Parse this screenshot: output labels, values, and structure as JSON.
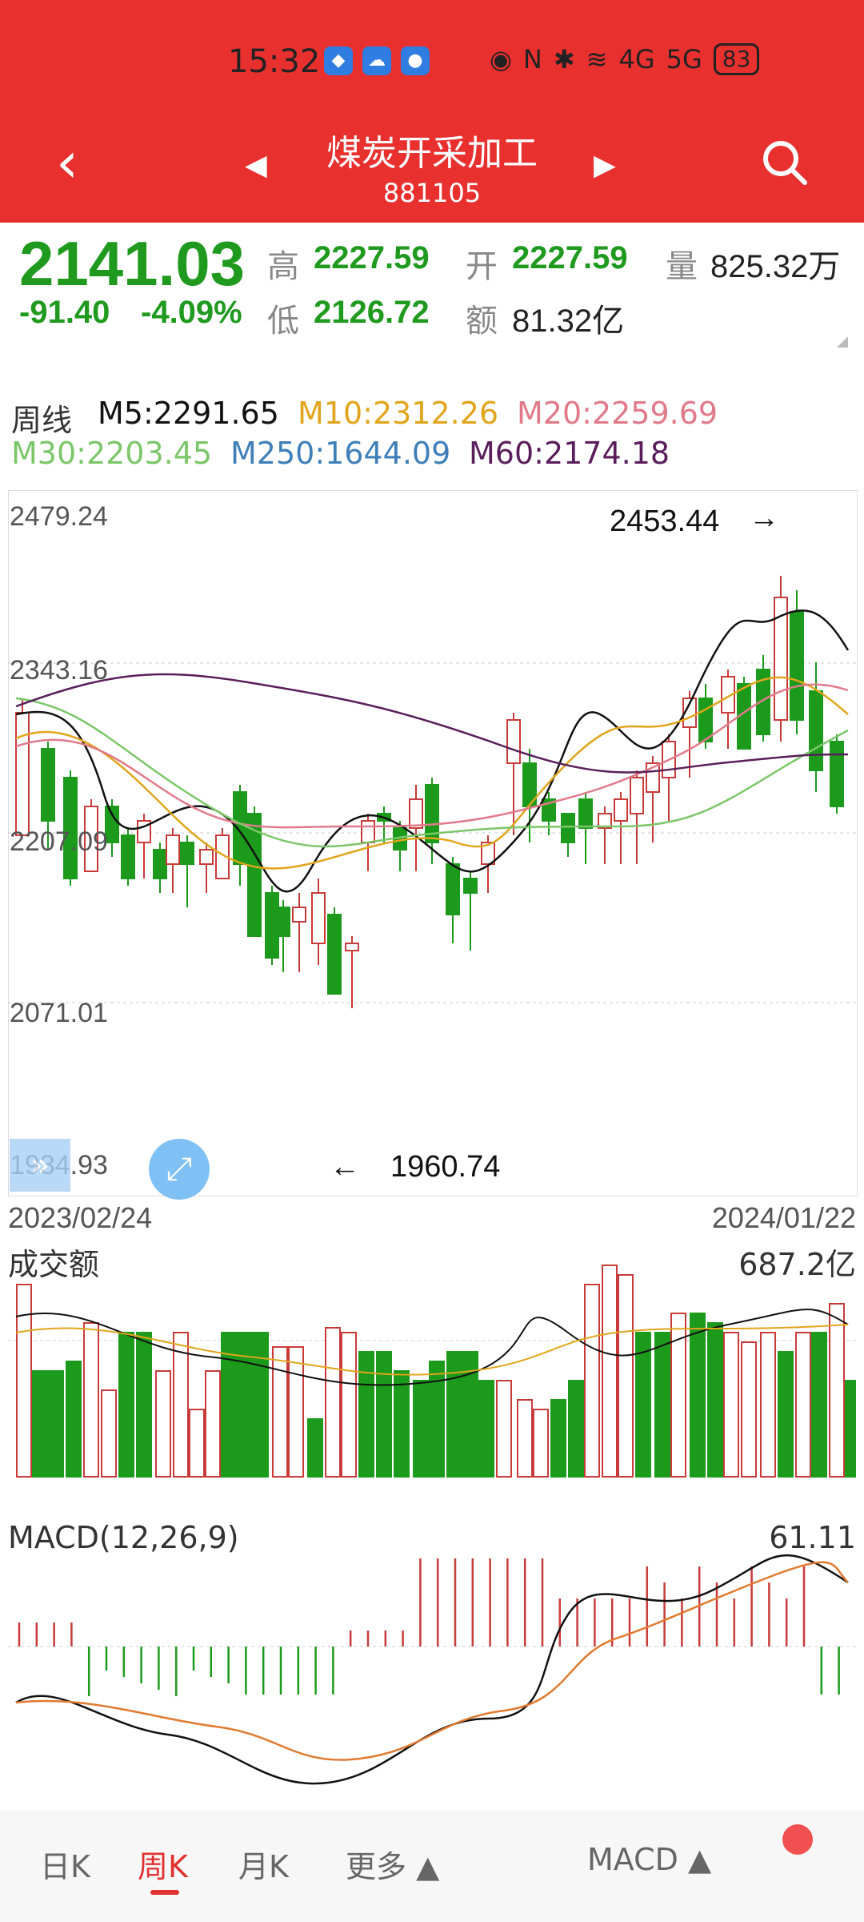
{
  "status": {
    "time": "15:32",
    "battery": "83",
    "net_4g": "4G",
    "net_5g": "5G"
  },
  "header": {
    "title": "煤炭开采加工",
    "code": "881105"
  },
  "quote": {
    "price": "2141.03",
    "change": "-91.40",
    "change_pct": "-4.09%",
    "high_label": "高",
    "high": "2227.59",
    "open_label": "开",
    "open": "2227.59",
    "vol_label": "量",
    "vol": "825.32万",
    "low_label": "低",
    "low": "2126.72",
    "amt_label": "额",
    "amt": "81.32亿"
  },
  "ma": {
    "period": "周线",
    "m5": "M5:2291.65",
    "m10": "M10:2312.26",
    "m20": "M20:2259.69",
    "m30": "M30:2203.45",
    "m250": "M250:1644.09",
    "m60": "M60:2174.18"
  },
  "colors": {
    "up": "#c83b3b",
    "down": "#1c9a1c",
    "m5": "#111111",
    "m10": "#e0a51c",
    "m20": "#e07a8a",
    "m30": "#7cc66a",
    "m250": "#3f7fb8",
    "m60": "#5a1f5a"
  },
  "kline": {
    "y_ticks": [
      "2479.24",
      "2343.16",
      "2207.09",
      "2071.01",
      "1934.93"
    ],
    "max_annot": "2453.44",
    "min_annot": "1960.74",
    "start_date": "2023/02/24",
    "end_date": "2024/01/22"
  },
  "volume": {
    "title": "成交额",
    "max": "687.2亿"
  },
  "macd": {
    "title": "MACD(12,26,9)",
    "max": "61.11"
  },
  "tabs": {
    "day": "日K",
    "week": "周K",
    "month": "月K",
    "more": "更多",
    "indicator": "MACD"
  }
}
